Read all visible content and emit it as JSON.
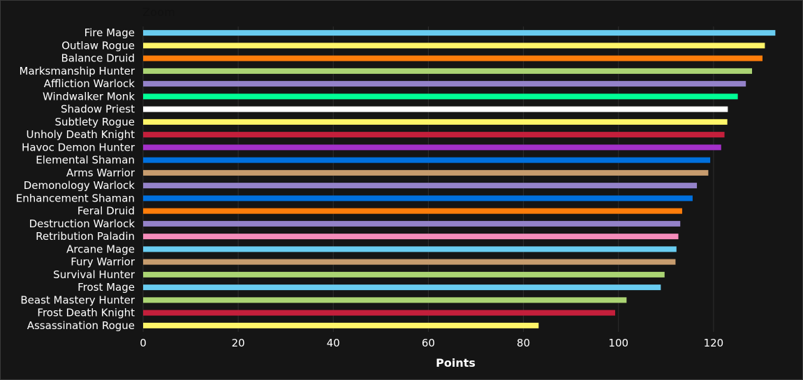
{
  "zoom_label": "Zoom",
  "chart_data": {
    "type": "bar",
    "orientation": "horizontal",
    "title": "",
    "xlabel": "Points",
    "ylabel": "",
    "xlim": [
      0,
      135
    ],
    "xticks": [
      0,
      20,
      40,
      60,
      80,
      100,
      120
    ],
    "grid": true,
    "categories": [
      "Fire Mage",
      "Outlaw Rogue",
      "Balance Druid",
      "Marksmanship Hunter",
      "Affliction Warlock",
      "Windwalker Monk",
      "Shadow Priest",
      "Subtlety Rogue",
      "Unholy Death Knight",
      "Havoc Demon Hunter",
      "Elemental Shaman",
      "Arms Warrior",
      "Demonology Warlock",
      "Enhancement Shaman",
      "Feral Druid",
      "Destruction Warlock",
      "Retribution Paladin",
      "Arcane Mage",
      "Fury Warrior",
      "Survival Hunter",
      "Frost Mage",
      "Beast Mastery Hunter",
      "Frost Death Knight",
      "Assassination Rogue"
    ],
    "values": [
      133.0,
      130.8,
      130.3,
      128.1,
      126.8,
      125.1,
      123.0,
      122.9,
      122.3,
      121.6,
      119.3,
      118.9,
      116.5,
      115.6,
      113.4,
      113.0,
      112.6,
      112.2,
      112.0,
      109.7,
      108.9,
      101.7,
      99.3,
      83.2
    ],
    "colors": [
      "#69CCF0",
      "#FFF569",
      "#FF7D0A",
      "#ABD473",
      "#9482C9",
      "#00FF96",
      "#FFFFFF",
      "#FFF569",
      "#C41F3B",
      "#A330C9",
      "#0070DE",
      "#C79C6E",
      "#9482C9",
      "#0070DE",
      "#FF7D0A",
      "#9482C9",
      "#F58CBA",
      "#69CCF0",
      "#C79C6E",
      "#ABD473",
      "#69CCF0",
      "#ABD473",
      "#C41F3B",
      "#FFF569"
    ]
  }
}
